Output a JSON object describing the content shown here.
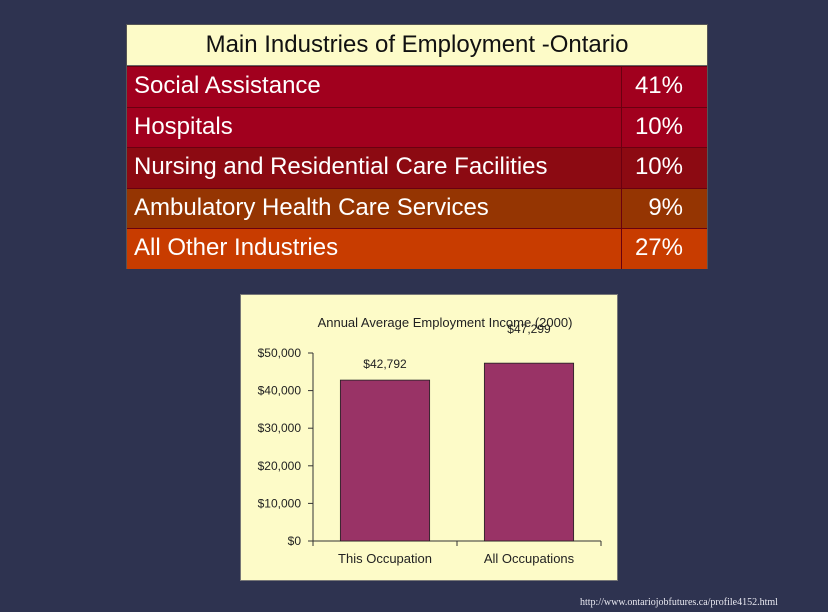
{
  "industries_table": {
    "title": "Main Industries of Employment -Ontario",
    "rows": [
      {
        "name": "Social Assistance",
        "pct": "41%",
        "color": "#a1001e"
      },
      {
        "name": "Hospitals",
        "pct": "10%",
        "color": "#a1001e"
      },
      {
        "name": "Nursing and Residential Care Facilities",
        "pct": "10%",
        "color": "#8c0a12"
      },
      {
        "name": "Ambulatory Health Care Services",
        "pct": "9%",
        "color": "#953502"
      },
      {
        "name": "All Other Industries",
        "pct": "27%",
        "color": "#c83c00"
      }
    ]
  },
  "chart_data": {
    "type": "bar",
    "title": "Annual Average Employment Income (2000)",
    "categories": [
      "This Occupation",
      "All Occupations"
    ],
    "values": [
      42792,
      47299
    ],
    "data_labels": [
      "$42,792",
      "$47,299"
    ],
    "ylim": [
      0,
      50000
    ],
    "yticks": [
      "$0",
      "$10,000",
      "$20,000",
      "$30,000",
      "$40,000",
      "$50,000"
    ],
    "ytick_values": [
      0,
      10000,
      20000,
      30000,
      40000,
      50000
    ],
    "bar_color": "#993366",
    "grid": false,
    "legend": "none"
  },
  "source_url": "http://www.ontariojobfutures.ca/profile4152.html"
}
